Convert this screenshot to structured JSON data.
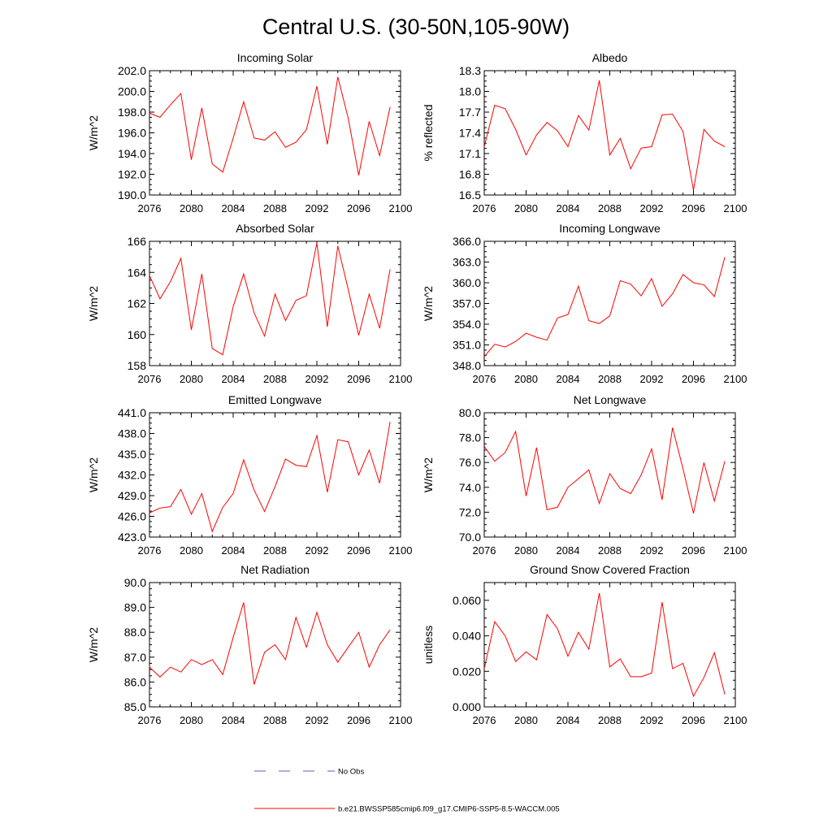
{
  "figure": {
    "title": "Central U.S. (30-50N,105-90W)",
    "legend": [
      {
        "label": "No Obs",
        "color": "#5a5ac8",
        "style": "dashed"
      },
      {
        "label": "b.e21.BWSSP585cmip6.f09_g17.CMIP6-SSP5-8.5-WACCM.005",
        "color": "#ff0000",
        "style": "solid"
      }
    ],
    "line_color": "#ff0000"
  },
  "chart_data": [
    {
      "type": "line",
      "title": "Incoming Solar",
      "ylabel": "W/m^2",
      "xlabel": "",
      "xlim": [
        2076,
        2100
      ],
      "xticks": [
        "2076",
        "2080",
        "2084",
        "2088",
        "2092",
        "2096",
        "2100"
      ],
      "ylim": [
        190,
        202
      ],
      "yticks": [
        "190.0",
        "192.0",
        "194.0",
        "196.0",
        "198.0",
        "200.0",
        "202.0"
      ],
      "x": [
        2076,
        2077,
        2078,
        2079,
        2080,
        2081,
        2082,
        2083,
        2084,
        2085,
        2086,
        2087,
        2088,
        2089,
        2090,
        2091,
        2092,
        2093,
        2094,
        2095,
        2096,
        2097,
        2098,
        2099
      ],
      "values": [
        197.9,
        197.5,
        198.7,
        199.8,
        193.4,
        198.4,
        193.0,
        192.2,
        195.5,
        199.0,
        195.5,
        195.3,
        196.1,
        194.6,
        195.1,
        196.3,
        200.5,
        194.9,
        201.4,
        197.4,
        191.9,
        197.1,
        193.8,
        198.5
      ]
    },
    {
      "type": "line",
      "title": "Albedo",
      "ylabel": "% reflected",
      "xlabel": "",
      "xlim": [
        2076,
        2100
      ],
      "xticks": [
        "2076",
        "2080",
        "2084",
        "2088",
        "2092",
        "2096",
        "2100"
      ],
      "ylim": [
        16.5,
        18.3
      ],
      "yticks": [
        "16.5",
        "16.8",
        "17.1",
        "17.4",
        "17.7",
        "18.0",
        "18.3"
      ],
      "x": [
        2076,
        2077,
        2078,
        2079,
        2080,
        2081,
        2082,
        2083,
        2084,
        2085,
        2086,
        2087,
        2088,
        2089,
        2090,
        2091,
        2092,
        2093,
        2094,
        2095,
        2096,
        2097,
        2098,
        2099
      ],
      "values": [
        17.2,
        17.8,
        17.75,
        17.45,
        17.08,
        17.37,
        17.55,
        17.43,
        17.2,
        17.65,
        17.44,
        18.16,
        17.08,
        17.32,
        16.88,
        17.18,
        17.2,
        17.66,
        17.67,
        17.42,
        16.57,
        17.45,
        17.28,
        17.2
      ]
    },
    {
      "type": "line",
      "title": "Absorbed Solar",
      "ylabel": "W/m^2",
      "xlabel": "",
      "xlim": [
        2076,
        2100
      ],
      "xticks": [
        "2076",
        "2080",
        "2084",
        "2088",
        "2092",
        "2096",
        "2100"
      ],
      "ylim": [
        158,
        166
      ],
      "yticks": [
        "158",
        "160",
        "162",
        "164",
        "166"
      ],
      "x": [
        2076,
        2077,
        2078,
        2079,
        2080,
        2081,
        2082,
        2083,
        2084,
        2085,
        2086,
        2087,
        2088,
        2089,
        2090,
        2091,
        2092,
        2093,
        2094,
        2095,
        2096,
        2097,
        2098,
        2099
      ],
      "values": [
        163.8,
        162.3,
        163.4,
        164.9,
        160.3,
        163.9,
        159.1,
        158.7,
        161.8,
        163.9,
        161.4,
        159.9,
        162.6,
        160.9,
        162.2,
        162.5,
        165.9,
        160.5,
        165.7,
        162.9,
        159.95,
        162.6,
        160.4,
        164.2
      ]
    },
    {
      "type": "line",
      "title": "Incoming Longwave",
      "ylabel": "W/m^2",
      "xlabel": "",
      "xlim": [
        2076,
        2100
      ],
      "xticks": [
        "2076",
        "2080",
        "2084",
        "2088",
        "2092",
        "2096",
        "2100"
      ],
      "ylim": [
        348,
        366
      ],
      "yticks": [
        "348.0",
        "351.0",
        "354.0",
        "357.0",
        "360.0",
        "363.0",
        "366.0"
      ],
      "x": [
        2076,
        2077,
        2078,
        2079,
        2080,
        2081,
        2082,
        2083,
        2084,
        2085,
        2086,
        2087,
        2088,
        2089,
        2090,
        2091,
        2092,
        2093,
        2094,
        2095,
        2096,
        2097,
        2098,
        2099
      ],
      "values": [
        349.3,
        351.1,
        350.7,
        351.5,
        352.7,
        352.1,
        351.7,
        354.9,
        355.4,
        359.5,
        354.5,
        354.1,
        355.2,
        360.3,
        359.8,
        358.1,
        360.6,
        356.6,
        358.4,
        361.2,
        360.0,
        359.7,
        358.0,
        363.7
      ]
    },
    {
      "type": "line",
      "title": "Emitted Longwave",
      "ylabel": "W/m^2",
      "xlabel": "",
      "xlim": [
        2076,
        2100
      ],
      "xticks": [
        "2076",
        "2080",
        "2084",
        "2088",
        "2092",
        "2096",
        "2100"
      ],
      "ylim": [
        423,
        441
      ],
      "yticks": [
        "423.0",
        "426.0",
        "429.0",
        "432.0",
        "435.0",
        "438.0",
        "441.0"
      ],
      "x": [
        2076,
        2077,
        2078,
        2079,
        2080,
        2081,
        2082,
        2083,
        2084,
        2085,
        2086,
        2087,
        2088,
        2089,
        2090,
        2091,
        2092,
        2093,
        2094,
        2095,
        2096,
        2097,
        2098,
        2099
      ],
      "values": [
        426.5,
        427.2,
        427.4,
        429.9,
        426.3,
        429.3,
        423.8,
        427.3,
        429.3,
        434.2,
        429.8,
        426.7,
        430.3,
        434.3,
        433.4,
        433.2,
        437.7,
        429.5,
        437.1,
        436.8,
        432.0,
        435.6,
        430.8,
        439.7
      ]
    },
    {
      "type": "line",
      "title": "Net Longwave",
      "ylabel": "W/m^2",
      "xlabel": "",
      "xlim": [
        2076,
        2100
      ],
      "xticks": [
        "2076",
        "2080",
        "2084",
        "2088",
        "2092",
        "2096",
        "2100"
      ],
      "ylim": [
        70,
        80
      ],
      "yticks": [
        "70.0",
        "72.0",
        "74.0",
        "76.0",
        "78.0",
        "80.0"
      ],
      "x": [
        2076,
        2077,
        2078,
        2079,
        2080,
        2081,
        2082,
        2083,
        2084,
        2085,
        2086,
        2087,
        2088,
        2089,
        2090,
        2091,
        2092,
        2093,
        2094,
        2095,
        2096,
        2097,
        2098,
        2099
      ],
      "values": [
        77.3,
        76.1,
        76.8,
        78.5,
        73.3,
        77.2,
        72.2,
        72.4,
        74.0,
        74.7,
        75.4,
        72.7,
        75.1,
        73.9,
        73.5,
        75.0,
        77.1,
        73.0,
        78.8,
        75.5,
        71.9,
        76.0,
        72.9,
        76.1
      ]
    },
    {
      "type": "line",
      "title": "Net Radiation",
      "ylabel": "W/m^2",
      "xlabel": "",
      "xlim": [
        2076,
        2100
      ],
      "xticks": [
        "2076",
        "2080",
        "2084",
        "2088",
        "2092",
        "2096",
        "2100"
      ],
      "ylim": [
        85,
        90
      ],
      "yticks": [
        "85.0",
        "86.0",
        "87.0",
        "88.0",
        "89.0",
        "90.0"
      ],
      "x": [
        2076,
        2077,
        2078,
        2079,
        2080,
        2081,
        2082,
        2083,
        2084,
        2085,
        2086,
        2087,
        2088,
        2089,
        2090,
        2091,
        2092,
        2093,
        2094,
        2095,
        2096,
        2097,
        2098,
        2099
      ],
      "values": [
        86.6,
        86.2,
        86.6,
        86.4,
        86.9,
        86.7,
        86.9,
        86.3,
        87.8,
        89.2,
        85.9,
        87.2,
        87.5,
        86.9,
        88.6,
        87.4,
        88.8,
        87.5,
        86.8,
        87.4,
        88.0,
        86.6,
        87.5,
        88.1
      ]
    },
    {
      "type": "line",
      "title": "Ground Snow Covered Fraction",
      "ylabel": "unitless",
      "xlabel": "",
      "xlim": [
        2076,
        2100
      ],
      "xticks": [
        "2076",
        "2080",
        "2084",
        "2088",
        "2092",
        "2096",
        "2100"
      ],
      "ylim": [
        0.0,
        0.07
      ],
      "yticks": [
        "0.000",
        "0.020",
        "0.040",
        "0.060"
      ],
      "x": [
        2076,
        2077,
        2078,
        2079,
        2080,
        2081,
        2082,
        2083,
        2084,
        2085,
        2086,
        2087,
        2088,
        2089,
        2090,
        2091,
        2092,
        2093,
        2094,
        2095,
        2096,
        2097,
        2098,
        2099
      ],
      "values": [
        0.0215,
        0.048,
        0.04,
        0.0255,
        0.031,
        0.0265,
        0.052,
        0.044,
        0.0285,
        0.042,
        0.0325,
        0.064,
        0.0225,
        0.027,
        0.017,
        0.017,
        0.019,
        0.059,
        0.0215,
        0.0245,
        0.006,
        0.0165,
        0.0305,
        0.007
      ]
    }
  ]
}
